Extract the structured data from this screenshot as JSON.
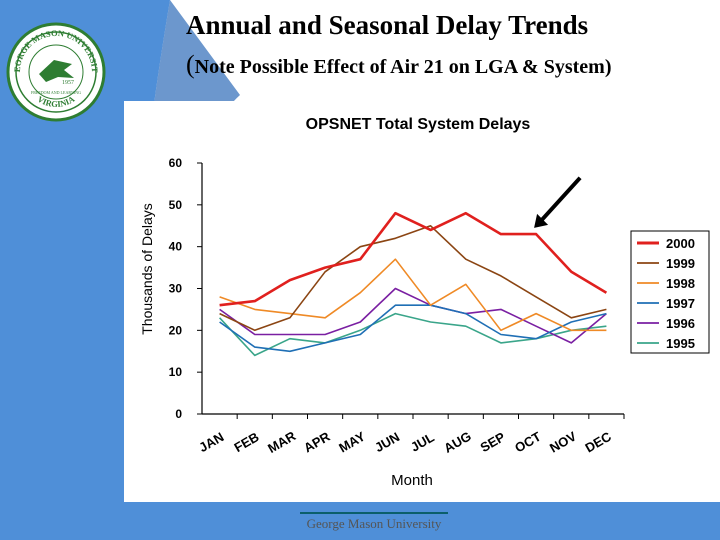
{
  "slide": {
    "title": "Annual and Seasonal Delay Trends",
    "subtitle_paren": "(",
    "subtitle_text": "Note Possible Effect of Air 21 on LGA & System)",
    "footer": "George Mason University",
    "seal": {
      "top_text": "GEORGE MASON UNIVERSITY",
      "bottom_text": "VIRGINIA",
      "year": "1957",
      "motto": "FREEDOM AND LEARNING"
    }
  },
  "colors": {
    "slide_blue": "#4f8fd8",
    "slide_dark": "#123a6b",
    "seal_green": "#2e7d32"
  },
  "chart_data": {
    "type": "line",
    "title": "OPSNET Total System Delays",
    "xlabel": "Month",
    "ylabel": "Thousands of Delays",
    "ylim": [
      0,
      60
    ],
    "yticks": [
      0,
      10,
      20,
      30,
      40,
      50,
      60
    ],
    "categories": [
      "JAN",
      "FEB",
      "MAR",
      "APR",
      "MAY",
      "JUN",
      "JUL",
      "AUG",
      "SEP",
      "OCT",
      "NOV",
      "DEC"
    ],
    "legend_position": "right",
    "series": [
      {
        "name": "2000",
        "color": "#e0201e",
        "values": [
          26,
          27,
          32,
          35,
          37,
          48,
          44,
          48,
          43,
          43,
          34,
          29
        ]
      },
      {
        "name": "1999",
        "color": "#8b4513",
        "values": [
          24,
          20,
          23,
          34,
          40,
          42,
          45,
          37,
          33,
          28,
          23,
          25
        ]
      },
      {
        "name": "1998",
        "color": "#ef8a26",
        "values": [
          28,
          25,
          24,
          23,
          29,
          37,
          26,
          31,
          20,
          24,
          20,
          20
        ]
      },
      {
        "name": "1997",
        "color": "#1f6fb5",
        "values": [
          22,
          16,
          15,
          17,
          19,
          26,
          26,
          24,
          19,
          18,
          22,
          24
        ]
      },
      {
        "name": "1996",
        "color": "#7a1fa2",
        "values": [
          25,
          19,
          19,
          19,
          22,
          30,
          26,
          24,
          25,
          21,
          17,
          24
        ]
      },
      {
        "name": "1995",
        "color": "#3aa58a",
        "values": [
          23,
          14,
          18,
          17,
          20,
          24,
          22,
          21,
          17,
          18,
          20,
          21
        ]
      }
    ],
    "annotation": {
      "type": "arrow",
      "target": {
        "category": "OCT",
        "value": 44.5
      }
    }
  }
}
